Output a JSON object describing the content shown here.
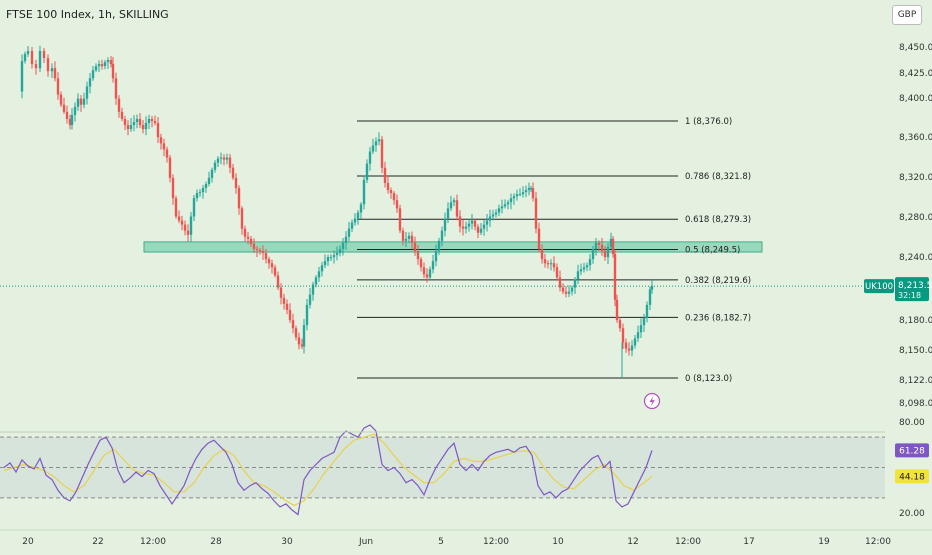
{
  "header": {
    "title": "FTSE 100 Index, 1h, SKILLING",
    "currency": "GBP"
  },
  "price_axis": {
    "ticks": [
      "8,450.0",
      "8,425.0",
      "8,400.0",
      "8,360.0",
      "8,320.0",
      "8,280.0",
      "8,240.0",
      "8,180.0",
      "8,150.0",
      "8,122.0",
      "8,098.0"
    ]
  },
  "rsi_axis": {
    "ticks": [
      "80.00",
      "20.00"
    ],
    "rsi_value": "61.28",
    "ma_value": "44.18"
  },
  "time_axis": {
    "ticks": [
      "20",
      "22",
      "12:00",
      "28",
      "30",
      "Jun",
      "5",
      "12:00",
      "10",
      "12",
      "12:00",
      "17",
      "19",
      "12:00"
    ]
  },
  "current_price": {
    "symbol": "UK100",
    "price": "8,213.5",
    "countdown": "32:18"
  },
  "fib_levels": [
    {
      "label": "1 (8,376.0)",
      "value": 8376.0
    },
    {
      "label": "0.786 (8,321.8)",
      "value": 8321.8
    },
    {
      "label": "0.618 (8,279.3)",
      "value": 8279.3
    },
    {
      "label": "0.5 (8,249.5)",
      "value": 8249.5
    },
    {
      "label": "0.382 (8,219.6)",
      "value": 8219.6
    },
    {
      "label": "0.236 (8,182.7)",
      "value": 8182.7
    },
    {
      "label": "0 (8,123.0)",
      "value": 8123.0
    }
  ],
  "colors": {
    "up": "#26a69a",
    "down": "#ef5350",
    "rsi": "#7e57c2",
    "rsi_ma": "#e8d14a",
    "zone": "#7fcfb0",
    "badge_green": "#089981"
  },
  "chart_data": {
    "type": "candlestick",
    "title": "FTSE 100 Index, 1h, SKILLING",
    "ylim": [
      8085,
      8475
    ],
    "close_path": [
      [
        20,
        8405
      ],
      [
        22,
        8435
      ],
      [
        25,
        8442
      ],
      [
        28,
        8445
      ],
      [
        32,
        8432
      ],
      [
        36,
        8428
      ],
      [
        40,
        8445
      ],
      [
        44,
        8438
      ],
      [
        48,
        8425
      ],
      [
        52,
        8428
      ],
      [
        55,
        8418
      ],
      [
        58,
        8402
      ],
      [
        61,
        8392
      ],
      [
        64,
        8385
      ],
      [
        67,
        8378
      ],
      [
        70,
        8372
      ],
      [
        72,
        8382
      ],
      [
        75,
        8390
      ],
      [
        78,
        8398
      ],
      [
        81,
        8392
      ],
      [
        84,
        8398
      ],
      [
        87,
        8410
      ],
      [
        90,
        8418
      ],
      [
        93,
        8426
      ],
      [
        96,
        8430
      ],
      [
        99,
        8432
      ],
      [
        102,
        8430
      ],
      [
        105,
        8434
      ],
      [
        108,
        8436
      ],
      [
        111,
        8432
      ],
      [
        113,
        8418
      ],
      [
        116,
        8398
      ],
      [
        119,
        8385
      ],
      [
        122,
        8378
      ],
      [
        125,
        8372
      ],
      [
        128,
        8368
      ],
      [
        131,
        8372
      ],
      [
        134,
        8375
      ],
      [
        137,
        8378
      ],
      [
        140,
        8372
      ],
      [
        143,
        8368
      ],
      [
        146,
        8374
      ],
      [
        149,
        8378
      ],
      [
        152,
        8376
      ],
      [
        155,
        8374
      ],
      [
        158,
        8360
      ],
      [
        161,
        8354
      ],
      [
        164,
        8348
      ],
      [
        167,
        8340
      ],
      [
        170,
        8320
      ],
      [
        173,
        8300
      ],
      [
        176,
        8282
      ],
      [
        179,
        8278
      ],
      [
        182,
        8274
      ],
      [
        185,
        8268
      ],
      [
        188,
        8264
      ],
      [
        191,
        8282
      ],
      [
        194,
        8300
      ],
      [
        197,
        8305
      ],
      [
        200,
        8306
      ],
      [
        203,
        8310
      ],
      [
        206,
        8314
      ],
      [
        209,
        8320
      ],
      [
        212,
        8328
      ],
      [
        215,
        8335
      ],
      [
        218,
        8339
      ],
      [
        221,
        8340
      ],
      [
        224,
        8338
      ],
      [
        227,
        8340
      ],
      [
        230,
        8330
      ],
      [
        233,
        8320
      ],
      [
        236,
        8310
      ],
      [
        239,
        8290
      ],
      [
        242,
        8270
      ],
      [
        245,
        8262
      ],
      [
        248,
        8260
      ],
      [
        251,
        8255
      ],
      [
        254,
        8250
      ],
      [
        257,
        8249
      ],
      [
        260,
        8248
      ],
      [
        263,
        8246
      ],
      [
        266,
        8240
      ],
      [
        269,
        8236
      ],
      [
        272,
        8232
      ],
      [
        275,
        8224
      ],
      [
        278,
        8212
      ],
      [
        281,
        8202
      ],
      [
        284,
        8196
      ],
      [
        287,
        8190
      ],
      [
        290,
        8180
      ],
      [
        293,
        8172
      ],
      [
        296,
        8163
      ],
      [
        299,
        8156
      ],
      [
        302,
        8154
      ],
      [
        304,
        8175
      ],
      [
        307,
        8195
      ],
      [
        310,
        8205
      ],
      [
        313,
        8215
      ],
      [
        316,
        8222
      ],
      [
        319,
        8228
      ],
      [
        322,
        8234
      ],
      [
        325,
        8238
      ],
      [
        328,
        8242
      ],
      [
        331,
        8242
      ],
      [
        334,
        8244
      ],
      [
        337,
        8246
      ],
      [
        340,
        8250
      ],
      [
        343,
        8256
      ],
      [
        346,
        8262
      ],
      [
        349,
        8270
      ],
      [
        352,
        8276
      ],
      [
        355,
        8280
      ],
      [
        358,
        8286
      ],
      [
        361,
        8294
      ],
      [
        364,
        8318
      ],
      [
        367,
        8334
      ],
      [
        370,
        8346
      ],
      [
        373,
        8352
      ],
      [
        376,
        8356
      ],
      [
        379,
        8358
      ],
      [
        382,
        8330
      ],
      [
        385,
        8315
      ],
      [
        388,
        8308
      ],
      [
        391,
        8305
      ],
      [
        394,
        8298
      ],
      [
        397,
        8290
      ],
      [
        400,
        8268
      ],
      [
        403,
        8258
      ],
      [
        406,
        8260
      ],
      [
        409,
        8263
      ],
      [
        412,
        8256
      ],
      [
        415,
        8248
      ],
      [
        418,
        8240
      ],
      [
        421,
        8232
      ],
      [
        424,
        8225
      ],
      [
        427,
        8222
      ],
      [
        430,
        8230
      ],
      [
        433,
        8238
      ],
      [
        436,
        8248
      ],
      [
        439,
        8258
      ],
      [
        442,
        8268
      ],
      [
        445,
        8280
      ],
      [
        448,
        8290
      ],
      [
        451,
        8296
      ],
      [
        454,
        8298
      ],
      [
        457,
        8282
      ],
      [
        460,
        8272
      ],
      [
        463,
        8270
      ],
      [
        466,
        8272
      ],
      [
        469,
        8275
      ],
      [
        472,
        8278
      ],
      [
        475,
        8272
      ],
      [
        478,
        8266
      ],
      [
        481,
        8270
      ],
      [
        484,
        8274
      ],
      [
        487,
        8278
      ],
      [
        490,
        8282
      ],
      [
        493,
        8284
      ],
      [
        496,
        8286
      ],
      [
        499,
        8290
      ],
      [
        502,
        8292
      ],
      [
        505,
        8294
      ],
      [
        508,
        8296
      ],
      [
        511,
        8300
      ],
      [
        514,
        8302
      ],
      [
        517,
        8304
      ],
      [
        520,
        8304
      ],
      [
        523,
        8306
      ],
      [
        526,
        8308
      ],
      [
        529,
        8310
      ],
      [
        531,
        8310
      ],
      [
        533,
        8300
      ],
      [
        536,
        8270
      ],
      [
        539,
        8250
      ],
      [
        542,
        8240
      ],
      [
        545,
        8236
      ],
      [
        548,
        8235
      ],
      [
        551,
        8236
      ],
      [
        554,
        8232
      ],
      [
        557,
        8222
      ],
      [
        560,
        8212
      ],
      [
        563,
        8208
      ],
      [
        566,
        8206
      ],
      [
        569,
        8208
      ],
      [
        572,
        8212
      ],
      [
        575,
        8220
      ],
      [
        578,
        8228
      ],
      [
        581,
        8230
      ],
      [
        584,
        8232
      ],
      [
        587,
        8234
      ],
      [
        590,
        8240
      ],
      [
        593,
        8250
      ],
      [
        596,
        8256
      ],
      [
        599,
        8254
      ],
      [
        602,
        8248
      ],
      [
        605,
        8242
      ],
      [
        608,
        8252
      ],
      [
        611,
        8260
      ],
      [
        613,
        8245
      ],
      [
        615,
        8200
      ],
      [
        617,
        8180
      ],
      [
        620,
        8172
      ],
      [
        623,
        8158
      ],
      [
        626,
        8152
      ],
      [
        629,
        8150
      ],
      [
        632,
        8155
      ],
      [
        635,
        8162
      ],
      [
        638,
        8168
      ],
      [
        641,
        8175
      ],
      [
        644,
        8182
      ],
      [
        647,
        8195
      ],
      [
        650,
        8210
      ],
      [
        652,
        8213.5
      ]
    ],
    "rsi_path": [
      [
        4,
        50
      ],
      [
        10,
        53
      ],
      [
        16,
        47
      ],
      [
        22,
        55
      ],
      [
        28,
        51
      ],
      [
        34,
        49
      ],
      [
        40,
        56
      ],
      [
        46,
        45
      ],
      [
        52,
        42
      ],
      [
        58,
        35
      ],
      [
        64,
        30
      ],
      [
        70,
        28
      ],
      [
        76,
        34
      ],
      [
        82,
        43
      ],
      [
        88,
        52
      ],
      [
        94,
        60
      ],
      [
        100,
        68
      ],
      [
        106,
        70
      ],
      [
        112,
        63
      ],
      [
        118,
        48
      ],
      [
        124,
        40
      ],
      [
        130,
        43
      ],
      [
        136,
        47
      ],
      [
        142,
        44
      ],
      [
        148,
        48
      ],
      [
        154,
        46
      ],
      [
        160,
        38
      ],
      [
        166,
        32
      ],
      [
        172,
        26
      ],
      [
        178,
        32
      ],
      [
        184,
        38
      ],
      [
        190,
        48
      ],
      [
        196,
        56
      ],
      [
        202,
        62
      ],
      [
        208,
        66
      ],
      [
        214,
        68
      ],
      [
        220,
        64
      ],
      [
        226,
        60
      ],
      [
        232,
        52
      ],
      [
        238,
        40
      ],
      [
        244,
        35
      ],
      [
        250,
        38
      ],
      [
        256,
        40
      ],
      [
        262,
        36
      ],
      [
        268,
        33
      ],
      [
        274,
        28
      ],
      [
        280,
        24
      ],
      [
        286,
        26
      ],
      [
        292,
        22
      ],
      [
        298,
        19
      ],
      [
        304,
        42
      ],
      [
        310,
        48
      ],
      [
        316,
        52
      ],
      [
        322,
        56
      ],
      [
        328,
        58
      ],
      [
        334,
        60
      ],
      [
        340,
        70
      ],
      [
        346,
        74
      ],
      [
        352,
        72
      ],
      [
        358,
        70
      ],
      [
        364,
        76
      ],
      [
        370,
        78
      ],
      [
        376,
        74
      ],
      [
        382,
        52
      ],
      [
        388,
        48
      ],
      [
        394,
        50
      ],
      [
        400,
        46
      ],
      [
        406,
        40
      ],
      [
        412,
        42
      ],
      [
        418,
        38
      ],
      [
        424,
        32
      ],
      [
        430,
        42
      ],
      [
        436,
        50
      ],
      [
        442,
        56
      ],
      [
        448,
        62
      ],
      [
        454,
        66
      ],
      [
        460,
        52
      ],
      [
        466,
        48
      ],
      [
        472,
        52
      ],
      [
        478,
        48
      ],
      [
        484,
        54
      ],
      [
        490,
        58
      ],
      [
        496,
        60
      ],
      [
        502,
        61
      ],
      [
        508,
        62
      ],
      [
        514,
        60
      ],
      [
        520,
        63
      ],
      [
        526,
        64
      ],
      [
        532,
        58
      ],
      [
        538,
        38
      ],
      [
        544,
        32
      ],
      [
        550,
        34
      ],
      [
        556,
        30
      ],
      [
        562,
        34
      ],
      [
        568,
        36
      ],
      [
        574,
        42
      ],
      [
        580,
        48
      ],
      [
        586,
        52
      ],
      [
        592,
        56
      ],
      [
        598,
        58
      ],
      [
        604,
        50
      ],
      [
        610,
        54
      ],
      [
        616,
        28
      ],
      [
        622,
        24
      ],
      [
        628,
        26
      ],
      [
        634,
        34
      ],
      [
        640,
        42
      ],
      [
        646,
        50
      ],
      [
        652,
        61.28
      ]
    ],
    "rsi_ma_path": [
      [
        4,
        48
      ],
      [
        14,
        50
      ],
      [
        24,
        52
      ],
      [
        34,
        50
      ],
      [
        44,
        48
      ],
      [
        54,
        44
      ],
      [
        64,
        38
      ],
      [
        74,
        34
      ],
      [
        84,
        38
      ],
      [
        94,
        48
      ],
      [
        104,
        58
      ],
      [
        114,
        62
      ],
      [
        124,
        55
      ],
      [
        134,
        48
      ],
      [
        144,
        46
      ],
      [
        154,
        45
      ],
      [
        164,
        40
      ],
      [
        174,
        34
      ],
      [
        184,
        34
      ],
      [
        194,
        40
      ],
      [
        204,
        50
      ],
      [
        214,
        58
      ],
      [
        224,
        62
      ],
      [
        234,
        58
      ],
      [
        244,
        48
      ],
      [
        254,
        40
      ],
      [
        264,
        38
      ],
      [
        274,
        34
      ],
      [
        284,
        29
      ],
      [
        294,
        25
      ],
      [
        304,
        28
      ],
      [
        314,
        36
      ],
      [
        324,
        46
      ],
      [
        334,
        54
      ],
      [
        344,
        62
      ],
      [
        354,
        68
      ],
      [
        364,
        70
      ],
      [
        374,
        72
      ],
      [
        384,
        66
      ],
      [
        394,
        58
      ],
      [
        404,
        50
      ],
      [
        414,
        45
      ],
      [
        424,
        40
      ],
      [
        434,
        40
      ],
      [
        444,
        46
      ],
      [
        454,
        54
      ],
      [
        464,
        56
      ],
      [
        474,
        54
      ],
      [
        484,
        54
      ],
      [
        494,
        56
      ],
      [
        504,
        58
      ],
      [
        514,
        60
      ],
      [
        524,
        61
      ],
      [
        534,
        60
      ],
      [
        544,
        50
      ],
      [
        554,
        42
      ],
      [
        564,
        37
      ],
      [
        574,
        36
      ],
      [
        584,
        42
      ],
      [
        594,
        48
      ],
      [
        604,
        52
      ],
      [
        614,
        46
      ],
      [
        624,
        38
      ],
      [
        634,
        35
      ],
      [
        644,
        40
      ],
      [
        652,
        44.18
      ]
    ],
    "rsi_ylim": [
      10,
      90
    ],
    "rsi_bands": {
      "upper": 70,
      "middle": 50,
      "lower": 30
    },
    "support_zone": [
      8247,
      8257
    ]
  }
}
